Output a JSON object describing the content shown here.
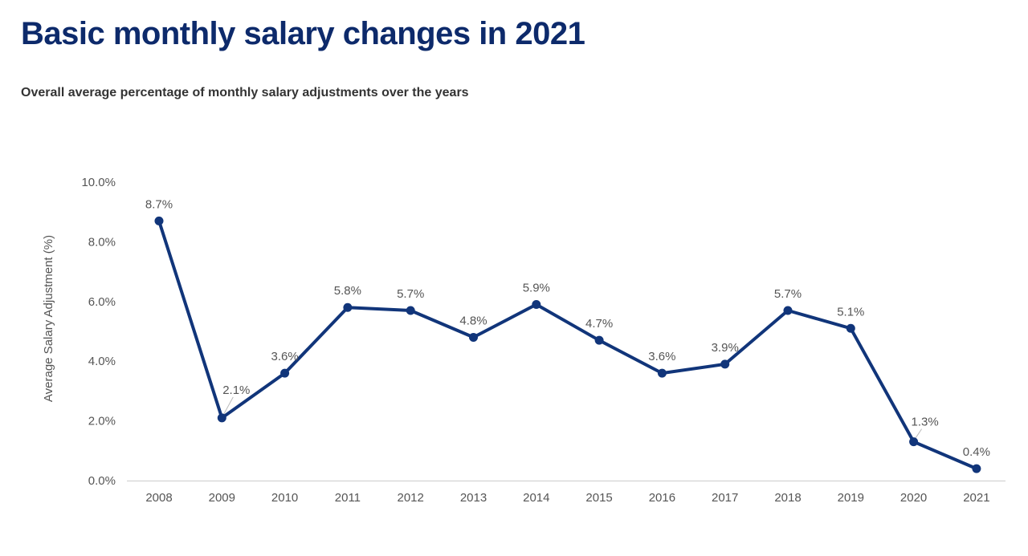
{
  "header": {
    "title": "Basic monthly salary changes in 2021",
    "subtitle": "Overall average percentage of monthly salary adjustments over the years"
  },
  "colors": {
    "line": "#11357a",
    "title": "#0d2a6b",
    "axis": "#cccccc"
  },
  "chart_data": {
    "type": "line",
    "title": "Basic monthly salary changes in 2021",
    "subtitle": "Overall average percentage of monthly salary adjustments over the years",
    "xlabel": "",
    "ylabel": "Average Salary Adjustment  (%)",
    "categories": [
      "2008",
      "2009",
      "2010",
      "2011",
      "2012",
      "2013",
      "2014",
      "2015",
      "2016",
      "2017",
      "2018",
      "2019",
      "2020",
      "2021"
    ],
    "series": [
      {
        "values": [
          8.7,
          2.1,
          3.6,
          5.8,
          5.7,
          4.8,
          5.9,
          4.7,
          3.6,
          3.9,
          5.7,
          5.1,
          1.3,
          0.4
        ]
      }
    ],
    "data_labels": [
      "8.7%",
      "2.1%",
      "3.6%",
      "5.8%",
      "5.7%",
      "4.8%",
      "5.9%",
      "4.7%",
      "3.6%",
      "3.9%",
      "5.7%",
      "5.1%",
      "1.3%",
      "0.4%"
    ],
    "ylim": [
      0,
      10
    ],
    "yticks": [
      "0.0%",
      "2.0%",
      "4.0%",
      "6.0%",
      "8.0%",
      "10.0%"
    ],
    "ytick_values": [
      0,
      2,
      4,
      6,
      8,
      10
    ],
    "grid": false,
    "legend": "none"
  }
}
